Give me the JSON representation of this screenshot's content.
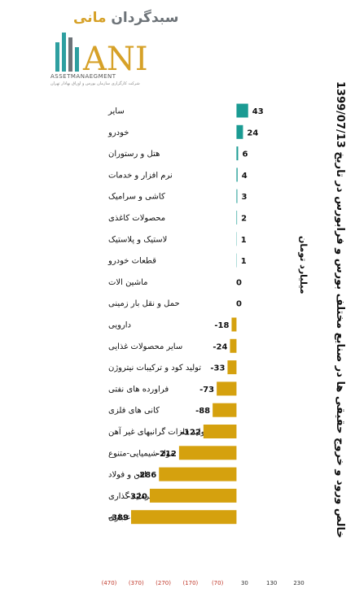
{
  "logo": {
    "fa_prefix": "سبدگردان",
    "fa_accent": "مانی",
    "en": "ASSETMANAEGMENT",
    "sub": "شرکت کارگزاری سازمان بورس و اوراق بهادار تهران",
    "mark_text": "ANI"
  },
  "chart_data": {
    "type": "bar",
    "orientation": "horizontal",
    "title": "خالص ورود و خروج حقیقی ها در صنایع مختلف بورس و فرابورس در تاریخ 1399/07/13",
    "unit": "میلیارد تومان",
    "xlabel": "",
    "ylabel": "",
    "xlim": [
      -470,
      230
    ],
    "xticks": [
      "(470)",
      "(370)",
      "(270)",
      "(170)",
      "(70)",
      "30",
      "130",
      "230"
    ],
    "xtick_values": [
      -470,
      -370,
      -270,
      -170,
      -70,
      30,
      130,
      230
    ],
    "grid": false,
    "legend": "none",
    "categories": [
      "سایر",
      "خودرو",
      "هتل و رستوران",
      "نرم افزار و خدمات",
      "کاشی و سرامیک",
      "محصولات کاغذی",
      "لاستیک و پلاستیک",
      "قطعات خودرو",
      "ماشین الات",
      "حمل و نقل بار زمینی",
      "دارویی",
      "سایر محصولات غذایی",
      "تولید کود و ترکیبات نیتروژن",
      "فراورده های نفتی",
      "کانی های فلزی",
      "تولید فلزات گرانبهای غیر آهن",
      "مواد شیمیایی-متنوع",
      "اهن و فولاد",
      "سرمایه گذاری",
      "بانکها و موسسات اعتباری"
    ],
    "values": [
      43,
      24,
      6,
      4,
      3,
      2,
      1,
      1,
      0,
      0,
      -18,
      -24,
      -33,
      -73,
      -88,
      -122,
      -212,
      -286,
      -320,
      -389
    ],
    "colors": {
      "positive": "#1b9b93",
      "negative": "#d5a10e",
      "negative_tick": "#c0392b",
      "positive_tick": "#333333"
    }
  }
}
